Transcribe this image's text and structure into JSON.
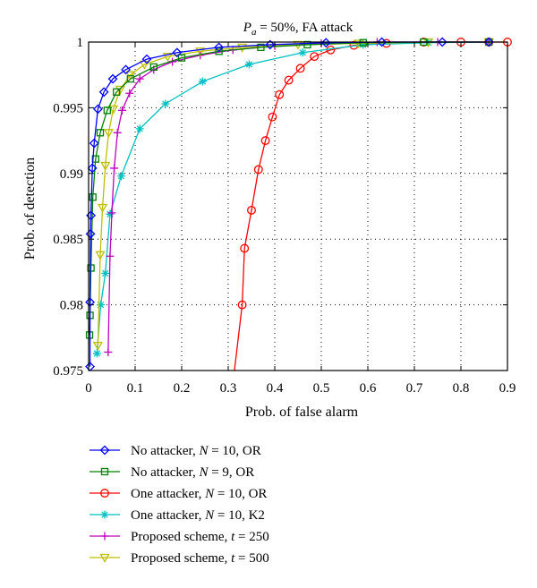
{
  "chart_data": {
    "type": "line",
    "title": "P_a = 50%, FA attack",
    "title_parts": {
      "symbol": "P",
      "subscript": "a",
      "rest": " = 50%, FA attack"
    },
    "xlabel": "Prob. of false alarm",
    "ylabel": "Prob. of detection",
    "xlim": [
      0,
      0.9
    ],
    "ylim": [
      0.975,
      1.0
    ],
    "xticks": [
      0,
      0.1,
      0.2,
      0.3,
      0.4,
      0.5,
      0.6,
      0.7,
      0.8,
      0.9
    ],
    "xtick_labels": [
      "0",
      "0.1",
      "0.2",
      "0.3",
      "0.4",
      "0.5",
      "0.6",
      "0.7",
      "0.8",
      "0.9"
    ],
    "yticks": [
      0.975,
      0.98,
      0.985,
      0.99,
      0.995,
      1.0
    ],
    "ytick_labels": [
      "0.975",
      "0.98",
      "0.985",
      "0.99",
      "0.995",
      "1"
    ],
    "grid": true,
    "legend_position": "below-plot",
    "series": [
      {
        "name": "No attacker, N = 10, OR",
        "label_parts": [
          "No attacker, ",
          "N",
          " = 10, OR"
        ],
        "color": "#0000ff",
        "marker": "diamond",
        "x": [
          0.003,
          0.003,
          0.004,
          0.005,
          0.008,
          0.012,
          0.02,
          0.033,
          0.052,
          0.08,
          0.125,
          0.19,
          0.28,
          0.39,
          0.51,
          0.63,
          0.76,
          0.86
        ],
        "y": [
          0.9753,
          0.9802,
          0.9854,
          0.9868,
          0.9904,
          0.9923,
          0.9949,
          0.9962,
          0.9972,
          0.9979,
          0.9987,
          0.9992,
          0.9996,
          0.9998,
          0.99995,
          1.0,
          1.0,
          1.0
        ]
      },
      {
        "name": "No attacker, N = 9, OR",
        "label_parts": [
          "No attacker, ",
          "N",
          " = 9, OR"
        ],
        "color": "#008000",
        "marker": "square",
        "x": [
          0.002,
          0.003,
          0.005,
          0.009,
          0.015,
          0.025,
          0.04,
          0.06,
          0.09,
          0.14,
          0.2,
          0.28,
          0.37,
          0.47,
          0.59,
          0.72,
          0.86
        ],
        "y": [
          0.9777,
          0.9792,
          0.9828,
          0.9882,
          0.9911,
          0.9931,
          0.9948,
          0.9962,
          0.9972,
          0.9981,
          0.9988,
          0.9993,
          0.9996,
          0.9998,
          0.99995,
          1.0,
          1.0
        ]
      },
      {
        "name": "One attacker, N = 10, OR",
        "label_parts": [
          "One attacker, ",
          "N",
          " = 10, OR"
        ],
        "color": "#ff0000",
        "marker": "circle",
        "x": [
          0.31,
          0.33,
          0.335,
          0.35,
          0.365,
          0.38,
          0.395,
          0.41,
          0.43,
          0.455,
          0.485,
          0.52,
          0.57,
          0.64,
          0.72,
          0.8,
          0.86,
          0.9
        ],
        "y": [
          0.974,
          0.98,
          0.9843,
          0.9872,
          0.9903,
          0.9925,
          0.9943,
          0.996,
          0.9971,
          0.998,
          0.9989,
          0.9994,
          0.99975,
          0.9999,
          1.0,
          1.0,
          1.0,
          1.0
        ]
      },
      {
        "name": "One attacker, N = 10, K2",
        "label_parts": [
          "One attacker, ",
          "N",
          " = 10, K2"
        ],
        "color": "#00c0c0",
        "marker": "star",
        "x": [
          0.018,
          0.026,
          0.036,
          0.046,
          0.07,
          0.11,
          0.165,
          0.245,
          0.345,
          0.46,
          0.59,
          0.73,
          0.86
        ],
        "y": [
          0.9763,
          0.98,
          0.9824,
          0.9869,
          0.9898,
          0.9934,
          0.9953,
          0.997,
          0.9983,
          0.9992,
          0.9998,
          0.99995,
          1.0
        ]
      },
      {
        "name": "Proposed scheme, t = 250",
        "label_parts": [
          "Proposed scheme, ",
          "t",
          " = 250"
        ],
        "color": "#bf00bf",
        "marker": "plus",
        "x": [
          0.042,
          0.046,
          0.05,
          0.055,
          0.062,
          0.072,
          0.088,
          0.11,
          0.14,
          0.18,
          0.24,
          0.31,
          0.4,
          0.5,
          0.62,
          0.75,
          0.86
        ],
        "y": [
          0.9764,
          0.9837,
          0.987,
          0.9904,
          0.9931,
          0.9948,
          0.9961,
          0.9972,
          0.9979,
          0.9985,
          0.999,
          0.9994,
          0.9997,
          0.9999,
          1.0,
          1.0,
          1.0
        ]
      },
      {
        "name": "Proposed scheme, t = 500",
        "label_parts": [
          "Proposed scheme, ",
          "t",
          " = 500"
        ],
        "color": "#bfbf00",
        "marker": "triangle-down",
        "x": [
          0.02,
          0.025,
          0.03,
          0.036,
          0.043,
          0.053,
          0.068,
          0.09,
          0.12,
          0.17,
          0.24,
          0.33,
          0.45,
          0.58,
          0.73,
          0.86
        ],
        "y": [
          0.9769,
          0.9838,
          0.9874,
          0.9906,
          0.9931,
          0.9949,
          0.9964,
          0.9975,
          0.9983,
          0.9989,
          0.9993,
          0.9996,
          0.9998,
          0.9999,
          1.0,
          1.0
        ]
      }
    ]
  }
}
